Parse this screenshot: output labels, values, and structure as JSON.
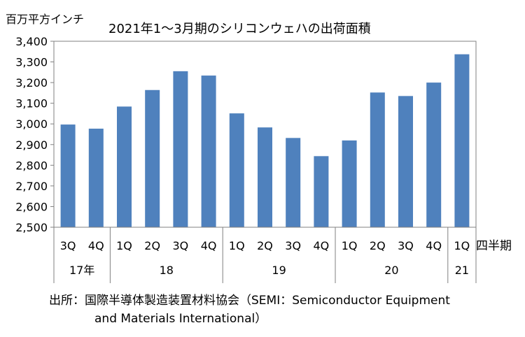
{
  "chart_data": {
    "type": "bar",
    "title": "2021年1～3月期のシリコンウェハの出荷面積",
    "ylabel": "百万平方インチ",
    "xlabel": "四半期",
    "ylim": [
      2500,
      3400
    ],
    "ytick_step": 100,
    "ytick_labels": [
      "2,500",
      "2,600",
      "2,700",
      "2,800",
      "2,900",
      "3,000",
      "3,100",
      "3,200",
      "3,300",
      "3,400"
    ],
    "grid": false,
    "bar_color": "#4f81bd",
    "categories": [
      "3Q",
      "4Q",
      "1Q",
      "2Q",
      "3Q",
      "4Q",
      "1Q",
      "2Q",
      "3Q",
      "4Q",
      "1Q",
      "2Q",
      "3Q",
      "4Q",
      "1Q"
    ],
    "values": [
      2997,
      2977,
      3084,
      3164,
      3255,
      3234,
      3051,
      2983,
      2932,
      2844,
      2920,
      3152,
      3135,
      3200,
      3337
    ],
    "year_groups": [
      {
        "label": "17年",
        "count": 2
      },
      {
        "label": "18",
        "count": 4
      },
      {
        "label": "19",
        "count": 4
      },
      {
        "label": "20",
        "count": 4
      },
      {
        "label": "21",
        "count": 1
      }
    ]
  },
  "source": {
    "line1": "出所：国際半導体製造装置材料協会（SEMI：Semiconductor Equipment",
    "line2": "and Materials International）"
  }
}
